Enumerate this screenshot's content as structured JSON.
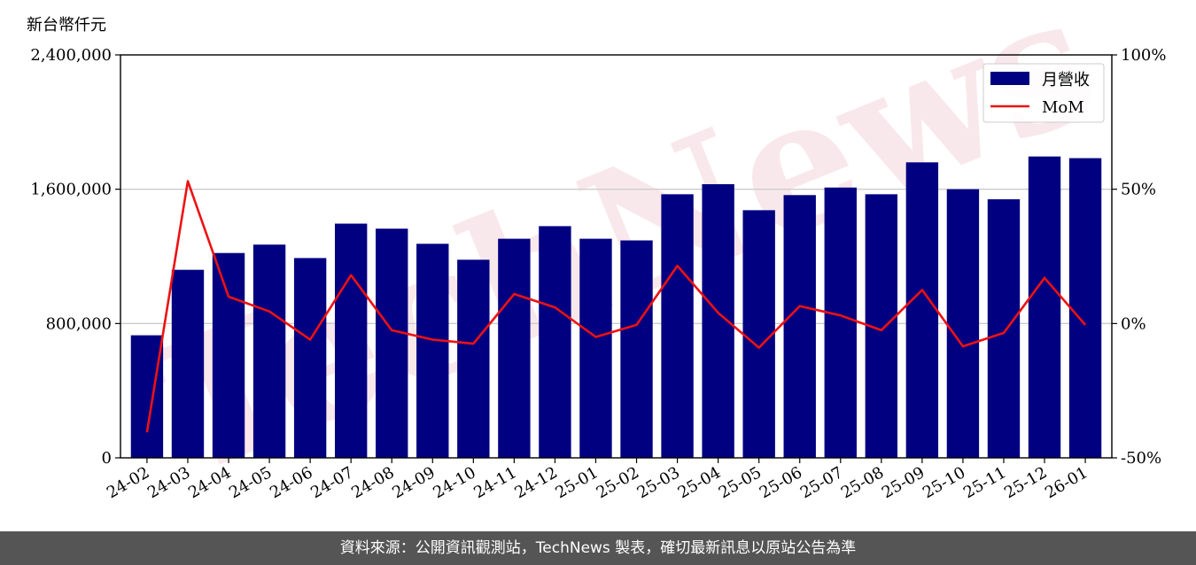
{
  "chart_data": {
    "type": "bar",
    "categories": [
      "24-02",
      "24-03",
      "24-04",
      "24-05",
      "24-06",
      "24-07",
      "24-08",
      "24-09",
      "24-10",
      "24-11",
      "24-12",
      "25-01",
      "25-02",
      "25-03",
      "25-04",
      "25-05",
      "25-06",
      "25-07",
      "25-08",
      "25-09",
      "25-10",
      "25-11",
      "25-12",
      "26-01"
    ],
    "series": [
      {
        "name": "月營收",
        "type": "bar",
        "axis": "left",
        "color": "#000080",
        "values": [
          730000,
          1120000,
          1220000,
          1270000,
          1190000,
          1395000,
          1365000,
          1275000,
          1180000,
          1305000,
          1380000,
          1305000,
          1295000,
          1570000,
          1630000,
          1475000,
          1565000,
          1610000,
          1570000,
          1760000,
          1600000,
          1540000,
          1795000,
          1785000
        ]
      },
      {
        "name": "MoM",
        "type": "line",
        "axis": "right",
        "color": "#ee1111",
        "values": [
          -40.5,
          53,
          10,
          4.5,
          -6,
          18,
          -2.5,
          -6,
          -7.5,
          11,
          6,
          -5,
          -0.5,
          21.5,
          4,
          -9,
          6.5,
          3,
          -2.5,
          12.5,
          -8.5,
          -3.5,
          17,
          -0.5
        ]
      }
    ],
    "y_left": {
      "unit_label": "新台幣仟元",
      "ylim": [
        0,
        2400000
      ],
      "ticks": [
        "0",
        "800,000",
        "1,600,000",
        "2,400,000"
      ],
      "tick_values": [
        0,
        800000,
        1600000,
        2400000
      ]
    },
    "y_right": {
      "ylim": [
        -50,
        100
      ],
      "ticks": [
        "-50%",
        "0%",
        "50%",
        "100%"
      ],
      "tick_values": [
        -50,
        0,
        50,
        100
      ]
    },
    "grid": true,
    "legend_position": "top-right"
  },
  "watermark": "TechNews",
  "footer": {
    "text": "資料來源：公開資訊觀測站，TechNews 製表，確切最新訊息以原站公告為準"
  }
}
